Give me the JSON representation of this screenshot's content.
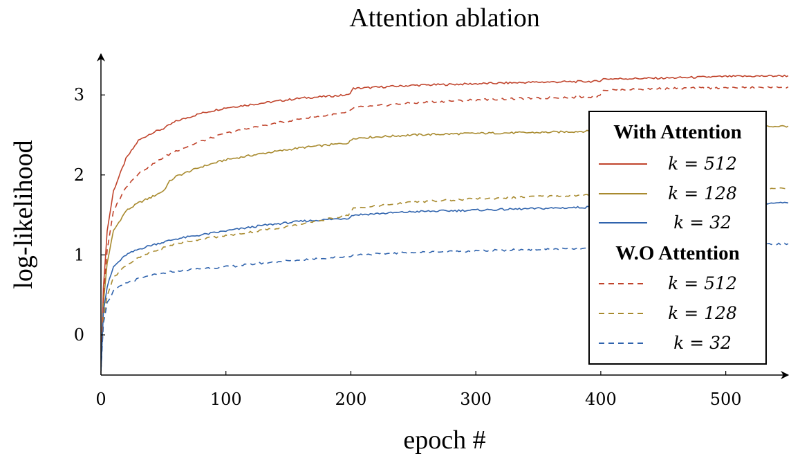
{
  "chart_data": {
    "type": "line",
    "title": "Attention ablation",
    "xlabel": "epoch #",
    "ylabel": "log-likelihood",
    "xlim": [
      0,
      550
    ],
    "ylim": [
      -0.5,
      3.45
    ],
    "xticks": [
      "0",
      "100",
      "200",
      "300",
      "400",
      "500"
    ],
    "yticks": [
      "0",
      "1",
      "2",
      "3"
    ],
    "grid": false,
    "legend_position": "right",
    "legend_groups": [
      "With Attention",
      "W.O Attention"
    ],
    "series": [
      {
        "name": "k = 512",
        "group": "With Attention",
        "style": "solid",
        "color": "#c0432b",
        "x": [
          0,
          2,
          5,
          10,
          20,
          30,
          40,
          50,
          60,
          80,
          100,
          130,
          160,
          198,
          202,
          250,
          300,
          350,
          398,
          402,
          450,
          500,
          550
        ],
        "y": [
          -0.45,
          0.6,
          1.3,
          1.8,
          2.2,
          2.43,
          2.52,
          2.58,
          2.67,
          2.77,
          2.84,
          2.9,
          2.96,
          3.0,
          3.08,
          3.12,
          3.14,
          3.16,
          3.17,
          3.2,
          3.21,
          3.23,
          3.24
        ]
      },
      {
        "name": "k = 128",
        "group": "With Attention",
        "style": "solid",
        "color": "#a88a2e",
        "x": [
          0,
          2,
          5,
          10,
          20,
          30,
          40,
          50,
          55,
          60,
          80,
          100,
          130,
          160,
          198,
          202,
          250,
          300,
          350,
          398,
          402,
          450,
          500,
          550
        ],
        "y": [
          -0.45,
          0.4,
          0.9,
          1.3,
          1.55,
          1.65,
          1.72,
          1.8,
          1.92,
          1.98,
          2.1,
          2.19,
          2.27,
          2.34,
          2.4,
          2.46,
          2.5,
          2.52,
          2.53,
          2.55,
          2.57,
          2.58,
          2.6,
          2.61
        ]
      },
      {
        "name": "k = 32",
        "group": "With Attention",
        "style": "solid",
        "color": "#2f63ad",
        "x": [
          0,
          2,
          5,
          10,
          20,
          30,
          40,
          50,
          60,
          80,
          100,
          130,
          160,
          198,
          202,
          250,
          300,
          350,
          398,
          402,
          450,
          500,
          550
        ],
        "y": [
          -0.45,
          0.3,
          0.6,
          0.85,
          1.0,
          1.07,
          1.12,
          1.16,
          1.2,
          1.25,
          1.3,
          1.37,
          1.42,
          1.46,
          1.5,
          1.54,
          1.56,
          1.58,
          1.6,
          1.61,
          1.62,
          1.64,
          1.65
        ]
      },
      {
        "name": "k = 512",
        "group": "W.O Attention",
        "style": "dashed",
        "color": "#c0432b",
        "x": [
          0,
          2,
          5,
          10,
          20,
          30,
          40,
          50,
          60,
          80,
          100,
          130,
          160,
          198,
          202,
          250,
          300,
          350,
          398,
          402,
          450,
          500,
          550
        ],
        "y": [
          -0.45,
          0.5,
          1.05,
          1.55,
          1.85,
          2.02,
          2.12,
          2.22,
          2.3,
          2.42,
          2.52,
          2.62,
          2.7,
          2.78,
          2.84,
          2.9,
          2.94,
          2.96,
          2.98,
          3.06,
          3.08,
          3.09,
          3.1
        ]
      },
      {
        "name": "k = 128",
        "group": "W.O Attention",
        "style": "dashed",
        "color": "#a88a2e",
        "x": [
          0,
          2,
          5,
          10,
          20,
          30,
          40,
          50,
          60,
          80,
          100,
          130,
          160,
          198,
          202,
          250,
          300,
          350,
          398,
          402,
          450,
          500,
          550
        ],
        "y": [
          -0.45,
          0.2,
          0.5,
          0.72,
          0.87,
          0.96,
          1.03,
          1.09,
          1.14,
          1.2,
          1.24,
          1.31,
          1.38,
          1.5,
          1.58,
          1.66,
          1.7,
          1.73,
          1.75,
          1.77,
          1.79,
          1.82,
          1.84
        ]
      },
      {
        "name": "k = 32",
        "group": "W.O Attention",
        "style": "dashed",
        "color": "#2f63ad",
        "x": [
          0,
          2,
          5,
          10,
          20,
          30,
          40,
          50,
          60,
          80,
          100,
          130,
          160,
          198,
          202,
          250,
          300,
          350,
          398,
          402,
          450,
          500,
          550
        ],
        "y": [
          -0.45,
          0.15,
          0.4,
          0.55,
          0.65,
          0.7,
          0.74,
          0.77,
          0.8,
          0.83,
          0.85,
          0.9,
          0.94,
          0.98,
          1.0,
          1.03,
          1.05,
          1.07,
          1.08,
          1.1,
          1.12,
          1.13,
          1.14
        ]
      }
    ]
  }
}
